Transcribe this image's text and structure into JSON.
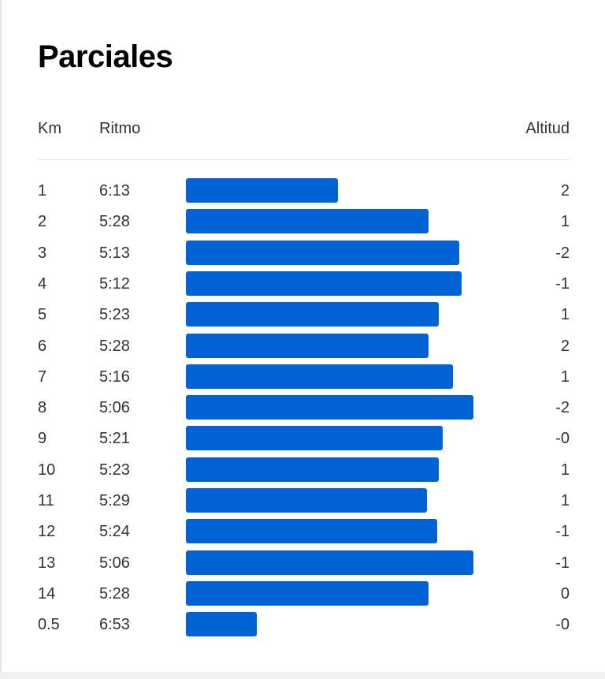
{
  "page": {
    "title": "Parciales"
  },
  "columns": {
    "km": "Km",
    "pace": "Ritmo",
    "altitude": "Altitud"
  },
  "colors": {
    "bar": "#0062d4",
    "text": "#333333",
    "title": "#000000"
  },
  "chart_data": {
    "type": "bar",
    "orientation": "horizontal",
    "title": "Parciales",
    "series": [
      {
        "name": "Ritmo",
        "values": [
          "6:13",
          "5:28",
          "5:13",
          "5:12",
          "5:23",
          "5:28",
          "5:16",
          "5:06",
          "5:21",
          "5:23",
          "5:29",
          "5:24",
          "5:06",
          "5:28",
          "6:53"
        ]
      }
    ],
    "rows": [
      {
        "km": "1",
        "pace": "6:13",
        "pace_seconds": 373,
        "altitude": "2"
      },
      {
        "km": "2",
        "pace": "5:28",
        "pace_seconds": 328,
        "altitude": "1"
      },
      {
        "km": "3",
        "pace": "5:13",
        "pace_seconds": 313,
        "altitude": "-2"
      },
      {
        "km": "4",
        "pace": "5:12",
        "pace_seconds": 312,
        "altitude": "-1"
      },
      {
        "km": "5",
        "pace": "5:23",
        "pace_seconds": 323,
        "altitude": "1"
      },
      {
        "km": "6",
        "pace": "5:28",
        "pace_seconds": 328,
        "altitude": "2"
      },
      {
        "km": "7",
        "pace": "5:16",
        "pace_seconds": 316,
        "altitude": "1"
      },
      {
        "km": "8",
        "pace": "5:06",
        "pace_seconds": 306,
        "altitude": "-2"
      },
      {
        "km": "9",
        "pace": "5:21",
        "pace_seconds": 321,
        "altitude": "-0"
      },
      {
        "km": "10",
        "pace": "5:23",
        "pace_seconds": 323,
        "altitude": "1"
      },
      {
        "km": "11",
        "pace": "5:29",
        "pace_seconds": 329,
        "altitude": "1"
      },
      {
        "km": "12",
        "pace": "5:24",
        "pace_seconds": 324,
        "altitude": "-1"
      },
      {
        "km": "13",
        "pace": "5:06",
        "pace_seconds": 306,
        "altitude": "-1"
      },
      {
        "km": "14",
        "pace": "5:28",
        "pace_seconds": 328,
        "altitude": "0"
      },
      {
        "km": "0.5",
        "pace": "6:53",
        "pace_seconds": 413,
        "altitude": "-0"
      }
    ],
    "bar_encoding": "longer bar = faster pace"
  }
}
